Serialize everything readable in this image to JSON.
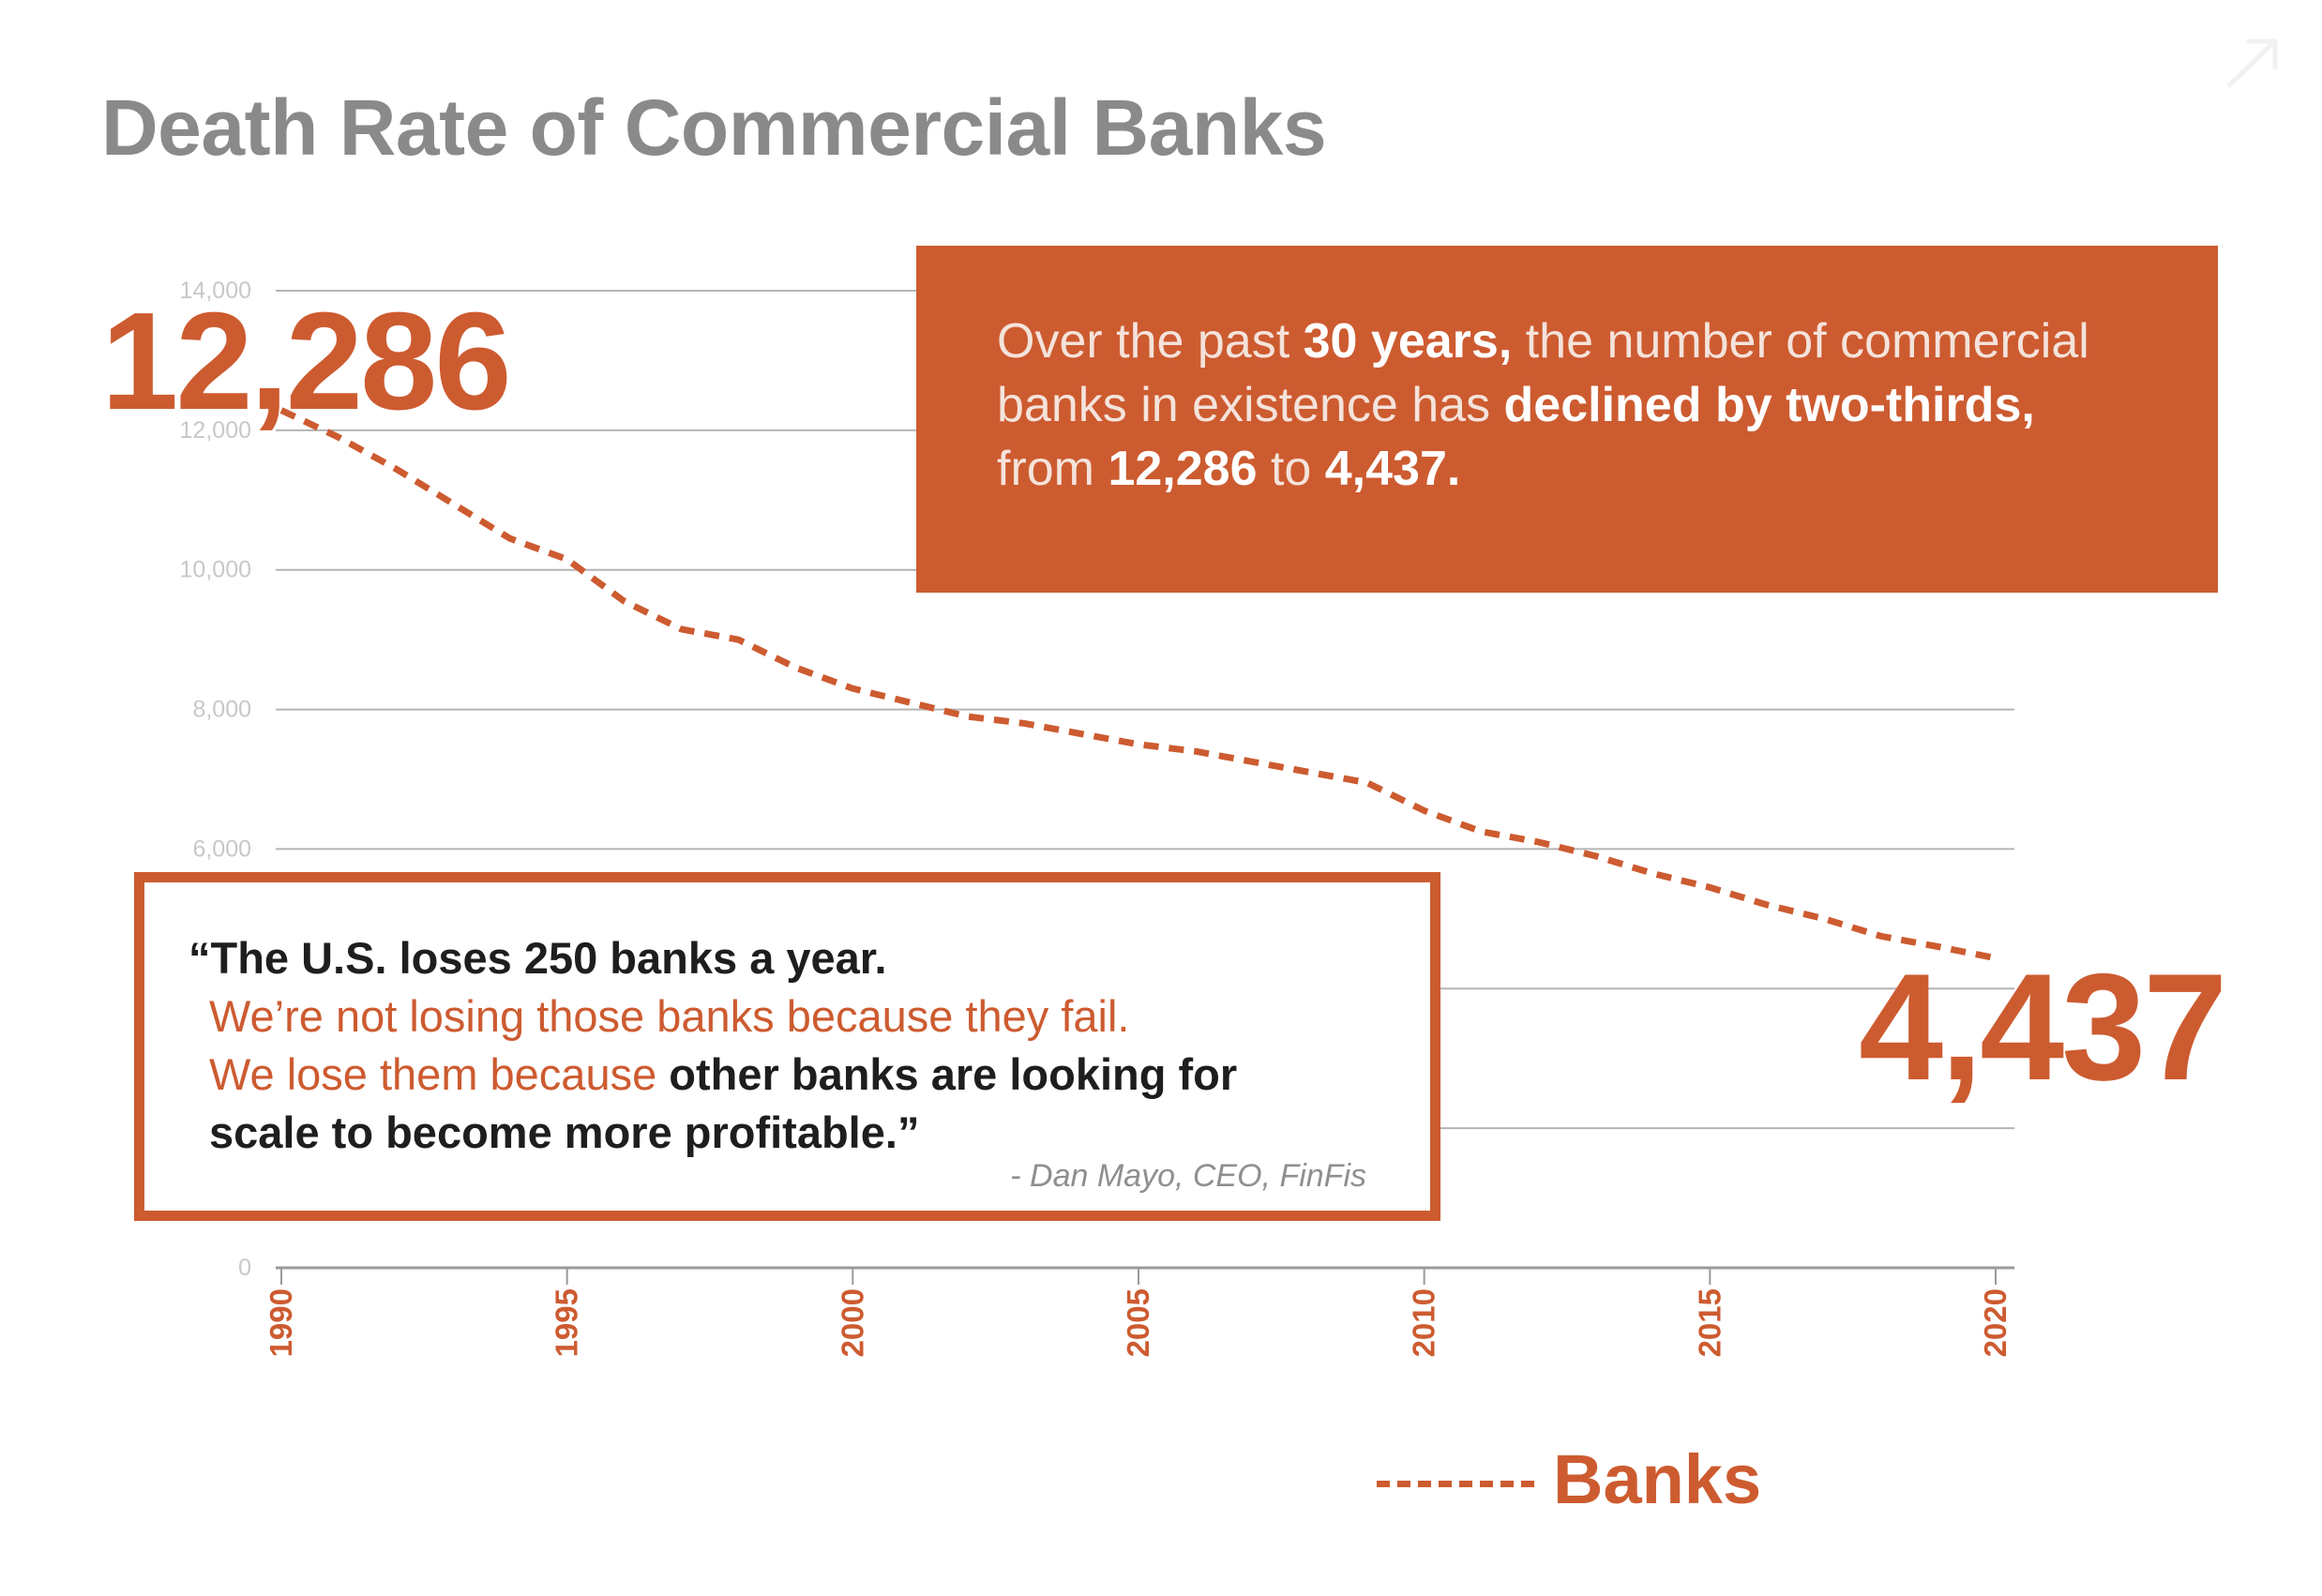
{
  "title": "Death Rate of Commercial Banks",
  "colors": {
    "accent": "#cd5b30",
    "title": "#8a8a8a",
    "grid": "#b4b4b4",
    "tick_label": "#c8c8c8"
  },
  "callout": {
    "t1": "Over the past ",
    "t2": "30 years,",
    "t3": " the number of commercial banks in existence has ",
    "t4": "declined by two-thirds,",
    "t5": " from ",
    "t6": "12,286",
    "t7": " to ",
    "t8": "4,437."
  },
  "quote": {
    "line1": "“The U.S. loses 250 banks a year.",
    "line2": "We’re not losing those banks because they fail.",
    "line3_accent": "We lose them because ",
    "line3_bold": "other banks are looking for",
    "line4": "scale to become more profitable.”",
    "attribution": "- Dan Mayo, CEO, FinFis"
  },
  "big_numbers": {
    "start": "12,286",
    "end": "4,437"
  },
  "legend": {
    "label": "Banks",
    "style": "dashed"
  },
  "chart_data": {
    "type": "line",
    "title": "Death Rate of Commercial Banks",
    "xlabel": "",
    "ylabel": "",
    "xlim": [
      1990,
      2020
    ],
    "ylim": [
      0,
      14000
    ],
    "yticks": [
      0,
      2000,
      4000,
      6000,
      8000,
      10000,
      12000,
      14000
    ],
    "ytick_labels": [
      "0",
      "",
      "",
      "6,000",
      "8,000",
      "10,000",
      "12,000",
      "14,000"
    ],
    "xticks": [
      1990,
      1995,
      2000,
      2005,
      2010,
      2015,
      2020
    ],
    "xtick_labels": [
      "1990",
      "1995",
      "2000",
      "2005",
      "2010",
      "2015",
      "2020"
    ],
    "grid": true,
    "legend_position": "bottom-right",
    "series": [
      {
        "name": "Banks",
        "style": "dashed",
        "x": [
          1990,
          1991,
          1992,
          1993,
          1994,
          1995,
          1996,
          1997,
          1998,
          1999,
          2000,
          2001,
          2002,
          2003,
          2004,
          2005,
          2006,
          2007,
          2008,
          2009,
          2010,
          2011,
          2012,
          2013,
          2014,
          2015,
          2016,
          2017,
          2018,
          2019,
          2020
        ],
        "values": [
          12286,
          11900,
          11450,
          10950,
          10450,
          10150,
          9550,
          9150,
          9000,
          8600,
          8300,
          8100,
          7900,
          7800,
          7650,
          7500,
          7400,
          7250,
          7100,
          6950,
          6550,
          6250,
          6100,
          5900,
          5650,
          5450,
          5200,
          5000,
          4750,
          4600,
          4437
        ]
      }
    ]
  }
}
